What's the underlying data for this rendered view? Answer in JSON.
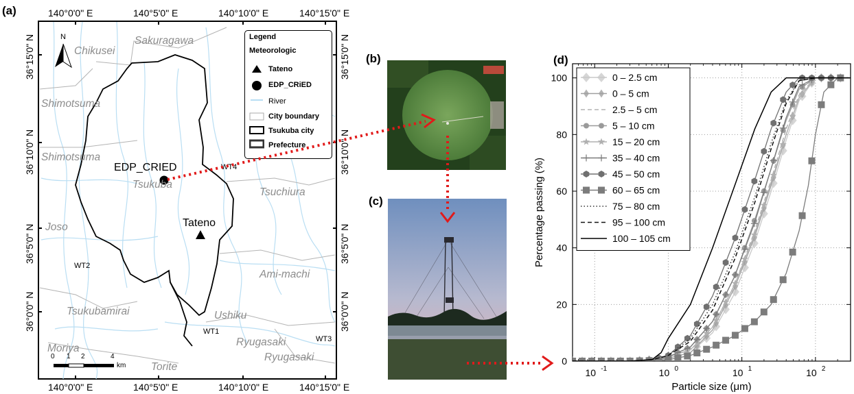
{
  "panels": {
    "a": "(a)",
    "b": "(b)",
    "c": "(c)",
    "d": "(d)"
  },
  "map": {
    "top_lon": [
      "140°0'0\" E",
      "140°5'0\" E",
      "140°10'0\" E",
      "140°15'0\" E"
    ],
    "bottom_lon": [
      "140°0'0\" E",
      "140°5'0\" E",
      "140°10'0\" E",
      "140°15'0\" E"
    ],
    "left_lat": [
      "36°15'0\" N",
      "36°10'0\" N",
      "36°5'0\" N",
      "36°0'0\" N"
    ],
    "right_lat": [
      "36°15'0\" N",
      "36°10'0\" N",
      "36°5'0\" N",
      "36°0'0\" N"
    ],
    "places": {
      "chikusei": "Chikusei",
      "sakuragawa": "Sakuragawa",
      "shimotsuma1": "Shimotsuma",
      "shimotsuma2": "Shimotsuma",
      "tsukuba": "Tsukuba",
      "tsuchiura": "Tsuchiura",
      "joso": "Joso",
      "ami": "Ami-machi",
      "tsukubamirai": "Tsukubamirai",
      "ushiku": "Ushiku",
      "ryugasaki1": "Ryugasaki",
      "ryugasaki2": "Ryugasaki",
      "moriya": "Moriya",
      "torite": "Torite"
    },
    "sites": {
      "edp": "EDP_CRIED",
      "tateno": "Tateno"
    },
    "wells": {
      "wt1": "WT1",
      "wt2": "WT2",
      "wt3": "WT3",
      "wt4": "WT4"
    },
    "north": "N",
    "scale": {
      "ticks": [
        "0",
        "1",
        "2",
        "4"
      ],
      "unit": "km"
    },
    "legend": {
      "title": "Legend",
      "section": "Meteorologic",
      "items": [
        "Tateno",
        "EDP_CRiED",
        "River",
        "City boundary",
        "Tsukuba city",
        "Prefecture"
      ]
    }
  },
  "chart_data": {
    "type": "line",
    "xlabel": "Particle size (μm)",
    "ylabel": "Percentage passing (%)",
    "x_scale": "log",
    "xlim": [
      0.05,
      300
    ],
    "ylim": [
      0,
      105
    ],
    "yticks": [
      0,
      20,
      40,
      60,
      80,
      100
    ],
    "xticks": [
      0.1,
      1,
      10,
      100
    ],
    "xtick_labels": [
      "10",
      "10",
      "10",
      "10"
    ],
    "xtick_exponents": [
      "-1",
      "0",
      "1",
      "2"
    ],
    "grid": true,
    "legend_position": "top-left",
    "series": [
      {
        "name": "0 – 2.5 cm",
        "marker": "diamond-large",
        "color": "#c8c8c8",
        "dash": "",
        "x": [
          0.05,
          0.3,
          0.6,
          1,
          2,
          4,
          8,
          15,
          25,
          40,
          60,
          100,
          200,
          300
        ],
        "y": [
          0,
          0,
          0.5,
          1,
          3,
          10,
          24,
          42,
          60,
          78,
          92,
          100,
          100,
          100
        ]
      },
      {
        "name": "0 – 5 cm",
        "marker": "diamond",
        "color": "#a0a0a0",
        "dash": "",
        "x": [
          0.05,
          0.3,
          0.6,
          1,
          2,
          4,
          8,
          15,
          25,
          40,
          60,
          100,
          200,
          300
        ],
        "y": [
          0,
          0,
          0.5,
          1,
          3,
          11,
          26,
          44,
          62,
          80,
          93,
          100,
          100,
          100
        ]
      },
      {
        "name": "2.5 – 5 cm",
        "marker": "none",
        "color": "#b4b4b4",
        "dash": "6,4",
        "x": [
          0.05,
          0.3,
          0.6,
          1,
          2,
          4,
          8,
          15,
          25,
          40,
          60,
          100,
          200,
          300
        ],
        "y": [
          0,
          0,
          0.5,
          1.5,
          4,
          12,
          27,
          46,
          64,
          82,
          94,
          100,
          100,
          100
        ]
      },
      {
        "name": "5 – 10 cm",
        "marker": "circle",
        "color": "#9a9a9a",
        "dash": "",
        "x": [
          0.05,
          0.3,
          0.6,
          1,
          2,
          4,
          8,
          15,
          25,
          40,
          60,
          100,
          200,
          300
        ],
        "y": [
          0,
          0,
          0.5,
          1.5,
          5,
          14,
          30,
          50,
          68,
          85,
          96,
          100,
          100,
          100
        ]
      },
      {
        "name": "15 – 20 cm",
        "marker": "star",
        "color": "#b0b0b0",
        "dash": "",
        "x": [
          0.05,
          0.3,
          0.6,
          1,
          2,
          4,
          8,
          15,
          25,
          40,
          60,
          100,
          200,
          300
        ],
        "y": [
          0,
          0,
          0.5,
          1.5,
          4,
          12,
          27,
          45,
          63,
          80,
          93,
          100,
          100,
          100
        ]
      },
      {
        "name": "35 – 40 cm",
        "marker": "plus",
        "color": "#7a7a7a",
        "dash": "",
        "x": [
          0.05,
          0.3,
          0.6,
          1,
          2,
          4,
          8,
          15,
          25,
          40,
          60,
          100,
          200,
          300
        ],
        "y": [
          0,
          0,
          0.5,
          1.5,
          5,
          14,
          30,
          49,
          68,
          86,
          97,
          100,
          100,
          100
        ]
      },
      {
        "name": "45 – 50 cm",
        "marker": "hexagon",
        "color": "#707070",
        "dash": "",
        "x": [
          0.05,
          0.3,
          0.6,
          1,
          2,
          4,
          8,
          15,
          25,
          40,
          60,
          100,
          200,
          300
        ],
        "y": [
          0,
          0,
          0.5,
          2,
          9,
          23,
          43,
          64,
          82,
          95,
          100,
          100,
          100,
          100
        ]
      },
      {
        "name": "60 – 65 cm",
        "marker": "square",
        "color": "#7c7c7c",
        "dash": "",
        "x": [
          0.05,
          0.3,
          0.6,
          1,
          2,
          4,
          8,
          15,
          25,
          40,
          60,
          80,
          100,
          130,
          200,
          300
        ],
        "y": [
          0,
          0,
          0.2,
          0.5,
          2,
          5,
          9,
          14,
          20,
          31,
          46,
          62,
          80,
          95,
          100,
          100
        ]
      },
      {
        "name": "75 – 80 cm",
        "marker": "none",
        "color": "#333333",
        "dash": "1.5,3",
        "x": [
          0.05,
          0.3,
          0.6,
          1,
          2,
          4,
          8,
          15,
          25,
          40,
          60,
          100,
          200,
          300
        ],
        "y": [
          0,
          0,
          0.5,
          2,
          8,
          20,
          38,
          58,
          77,
          92,
          99,
          100,
          100,
          100
        ]
      },
      {
        "name": "95 – 100 cm",
        "marker": "none",
        "color": "#111111",
        "dash": "6,4",
        "x": [
          0.05,
          0.3,
          0.6,
          1,
          2,
          4,
          8,
          15,
          25,
          40,
          60,
          100,
          200,
          300
        ],
        "y": [
          0,
          0,
          0.5,
          2,
          7,
          18,
          36,
          56,
          75,
          91,
          99,
          100,
          100,
          100
        ]
      },
      {
        "name": "100 – 105 cm",
        "marker": "none",
        "color": "#000000",
        "dash": "",
        "x": [
          0.05,
          0.3,
          0.6,
          0.8,
          1,
          2,
          4,
          8,
          15,
          25,
          40,
          60,
          100,
          200,
          300
        ],
        "y": [
          0,
          0,
          0.5,
          3,
          8,
          20,
          40,
          62,
          82,
          95,
          100,
          100,
          100,
          100,
          100
        ]
      }
    ]
  }
}
